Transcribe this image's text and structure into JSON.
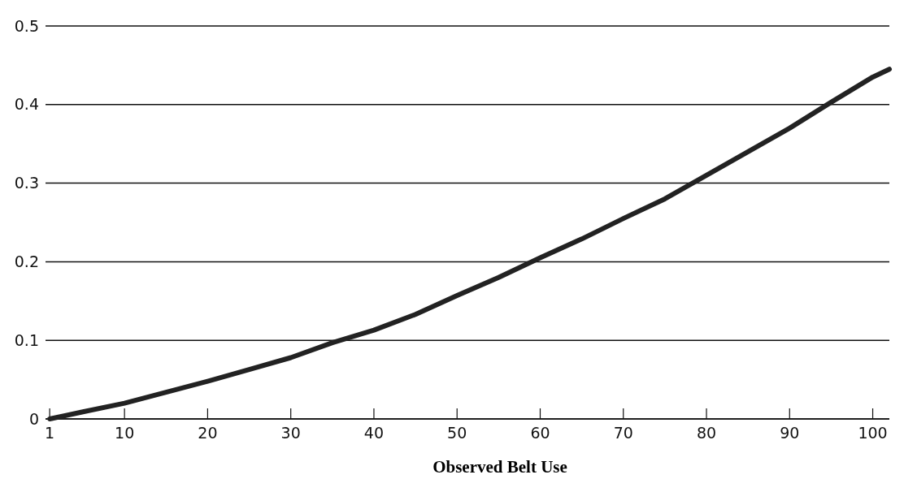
{
  "chart_data": {
    "type": "line",
    "xlabel": "Observed Belt Use",
    "x": [
      1,
      5,
      10,
      15,
      20,
      25,
      30,
      35,
      40,
      45,
      50,
      55,
      60,
      65,
      70,
      75,
      80,
      85,
      90,
      95,
      100,
      102
    ],
    "series": [
      {
        "color": "#222222",
        "values": [
          0,
          0.009,
          0.02,
          0.034,
          0.048,
          0.063,
          0.078,
          0.097,
          0.113,
          0.133,
          0.157,
          0.18,
          0.205,
          0.229,
          0.255,
          0.28,
          0.31,
          0.34,
          0.37,
          0.403,
          0.435,
          0.445
        ]
      }
    ],
    "xlim": [
      0.5,
      102
    ],
    "xticks": [
      1,
      10,
      20,
      30,
      40,
      50,
      60,
      70,
      80,
      90,
      100
    ],
    "ylim": [
      0,
      0.5
    ],
    "yticks": [
      0,
      0.1,
      0.2,
      0.3,
      0.4,
      0.5
    ],
    "grid": "y",
    "marker": "none",
    "line_style": "solid"
  }
}
